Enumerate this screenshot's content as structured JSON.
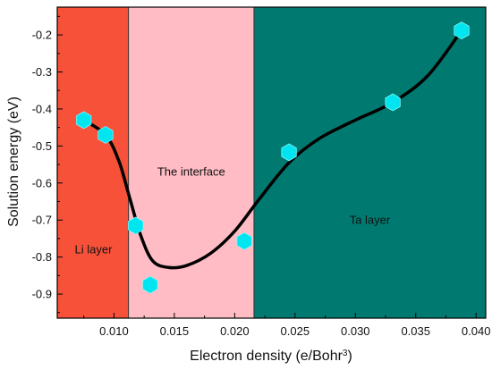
{
  "chart_data": {
    "type": "scatter",
    "xlabel": "Electron density (e/Bohr",
    "xlabel_sup": "3",
    "xlabel_suffix": ")",
    "ylabel": "Solution energy (eV)",
    "xlim": [
      0.0053,
      0.0408
    ],
    "ylim": [
      -0.965,
      -0.125
    ],
    "x_ticks": [
      0.01,
      0.015,
      0.02,
      0.025,
      0.03,
      0.035,
      0.04
    ],
    "x_tick_labels": [
      "0.010",
      "0.015",
      "0.020",
      "0.025",
      "0.030",
      "0.035",
      "0.040"
    ],
    "y_ticks": [
      -0.9,
      -0.8,
      -0.7,
      -0.6,
      -0.5,
      -0.4,
      -0.3,
      -0.2
    ],
    "y_tick_labels": [
      "-0.9",
      "-0.8",
      "-0.7",
      "-0.6",
      "-0.5",
      "-0.4",
      "-0.3",
      "-0.2"
    ],
    "regions": [
      {
        "label": "Li layer",
        "x_start": 0.0053,
        "x_end": 0.0112,
        "color": "#f7513a",
        "label_x": 0.0083,
        "label_y": -0.79
      },
      {
        "label": "The interface",
        "x_start": 0.0112,
        "x_end": 0.0216,
        "color": "#ffbcc4",
        "label_x": 0.0164,
        "label_y": -0.58
      },
      {
        "label": "Ta layer",
        "x_start": 0.0216,
        "x_end": 0.0408,
        "color": "#007a70",
        "label_x": 0.0312,
        "label_y": -0.71
      }
    ],
    "points": [
      {
        "x": 0.0075,
        "y": -0.43
      },
      {
        "x": 0.0093,
        "y": -0.47
      },
      {
        "x": 0.0118,
        "y": -0.715
      },
      {
        "x": 0.013,
        "y": -0.875
      },
      {
        "x": 0.0208,
        "y": -0.757
      },
      {
        "x": 0.0245,
        "y": -0.517
      },
      {
        "x": 0.0331,
        "y": -0.382
      },
      {
        "x": 0.0388,
        "y": -0.188
      }
    ],
    "point_color": "#00e5f0",
    "curve": [
      [
        0.0075,
        -0.43
      ],
      [
        0.0093,
        -0.47
      ],
      [
        0.0104,
        -0.54
      ],
      [
        0.0113,
        -0.64
      ],
      [
        0.0122,
        -0.74
      ],
      [
        0.0132,
        -0.81
      ],
      [
        0.0145,
        -0.828
      ],
      [
        0.016,
        -0.823
      ],
      [
        0.018,
        -0.79
      ],
      [
        0.02,
        -0.73
      ],
      [
        0.022,
        -0.645
      ],
      [
        0.0245,
        -0.545
      ],
      [
        0.027,
        -0.48
      ],
      [
        0.03,
        -0.43
      ],
      [
        0.0331,
        -0.382
      ],
      [
        0.036,
        -0.31
      ],
      [
        0.0388,
        -0.188
      ]
    ],
    "curve_color": "#000000"
  }
}
